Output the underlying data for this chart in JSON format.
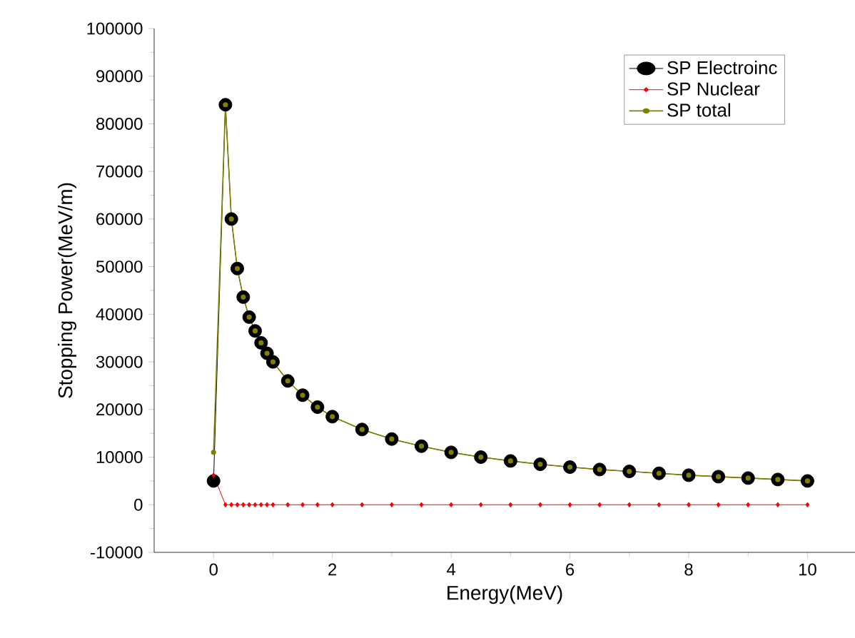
{
  "chart_data": {
    "type": "line",
    "xlabel": "Energy(MeV)",
    "ylabel": "Stopping Power(MeV/m)",
    "xlim": [
      -1,
      10.8
    ],
    "ylim": [
      -10000,
      100000
    ],
    "xticks": [
      0,
      2,
      4,
      6,
      8,
      10
    ],
    "yticks": [
      -10000,
      0,
      10000,
      20000,
      30000,
      40000,
      50000,
      60000,
      70000,
      80000,
      90000,
      100000
    ],
    "grid": false,
    "legend": "top right",
    "line_style": "solid",
    "series": [
      {
        "name": "SP Electroinc",
        "color": "#000000",
        "marker": "circle",
        "x": [
          0,
          0.2,
          0.3,
          0.4,
          0.5,
          0.6,
          0.7,
          0.8,
          0.9,
          1.0,
          1.25,
          1.5,
          1.75,
          2,
          2.5,
          3,
          3.5,
          4,
          4.5,
          5,
          5.5,
          6,
          6.5,
          7,
          7.5,
          8,
          8.5,
          9,
          9.5,
          10
        ],
        "values": [
          5000,
          84000,
          60000,
          49600,
          43600,
          39400,
          36500,
          34000,
          31800,
          30000,
          26000,
          23000,
          20500,
          18500,
          15800,
          13800,
          12300,
          11000,
          10000,
          9200,
          8500,
          7900,
          7400,
          7000,
          6600,
          6200,
          5900,
          5600,
          5300,
          5000
        ]
      },
      {
        "name": "SP Nuclear",
        "color": "#ff0000",
        "marker": "diamond",
        "x": [
          0,
          0.2,
          0.3,
          0.4,
          0.5,
          0.6,
          0.7,
          0.8,
          0.9,
          1.0,
          1.25,
          1.5,
          1.75,
          2,
          2.5,
          3,
          3.5,
          4,
          4.5,
          5,
          5.5,
          6,
          6.5,
          7,
          7.5,
          8,
          8.5,
          9,
          9.5,
          10
        ],
        "values": [
          6200,
          0,
          0,
          0,
          0,
          0,
          0,
          0,
          0,
          0,
          0,
          0,
          0,
          0,
          0,
          0,
          0,
          0,
          0,
          0,
          0,
          0,
          0,
          0,
          0,
          0,
          0,
          0,
          0,
          0
        ]
      },
      {
        "name": "SP total",
        "color": "#808000",
        "marker": "circle",
        "x": [
          0,
          0.2,
          0.3,
          0.4,
          0.5,
          0.6,
          0.7,
          0.8,
          0.9,
          1.0,
          1.25,
          1.5,
          1.75,
          2,
          2.5,
          3,
          3.5,
          4,
          4.5,
          5,
          5.5,
          6,
          6.5,
          7,
          7.5,
          8,
          8.5,
          9,
          9.5,
          10
        ],
        "values": [
          11000,
          84000,
          60000,
          49600,
          43600,
          39400,
          36500,
          34000,
          31800,
          30000,
          26000,
          23000,
          20500,
          18500,
          15800,
          13800,
          12300,
          11000,
          10000,
          9200,
          8500,
          7900,
          7400,
          7000,
          6600,
          6200,
          5900,
          5600,
          5300,
          5000
        ]
      }
    ]
  }
}
